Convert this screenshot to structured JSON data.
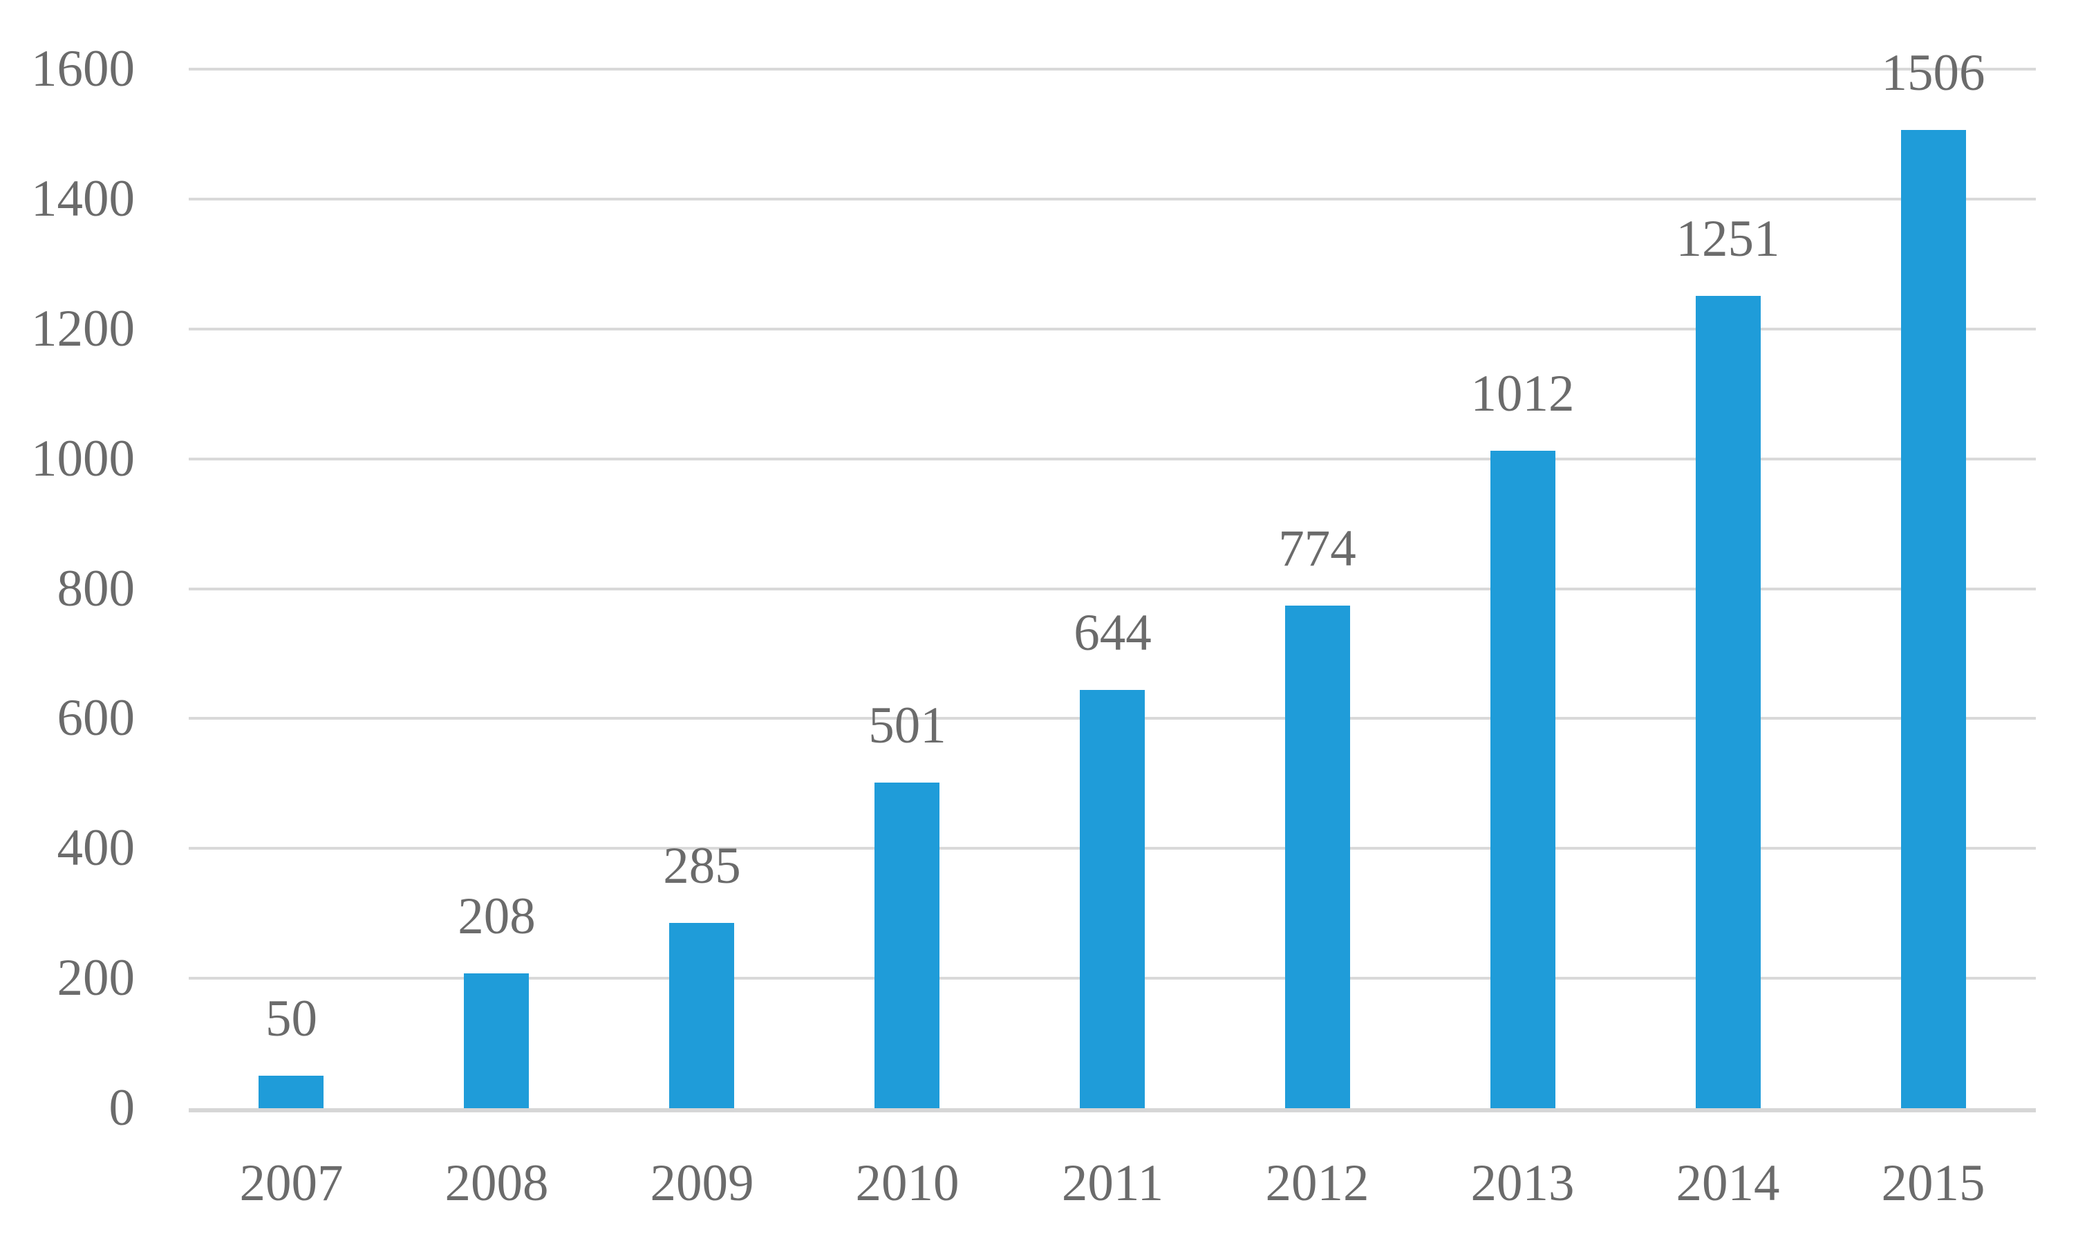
{
  "chart_data": {
    "type": "bar",
    "title": "",
    "xlabel": "",
    "ylabel": "",
    "categories": [
      "2007",
      "2008",
      "2009",
      "2010",
      "2011",
      "2012",
      "2013",
      "2014",
      "2015"
    ],
    "values": [
      50,
      208,
      285,
      501,
      644,
      774,
      1012,
      1251,
      1506
    ],
    "data_labels": [
      "50",
      "208",
      "285",
      "501",
      "644",
      "774",
      "1012",
      "1251",
      "1506"
    ],
    "yticks": [
      "1600",
      "1400",
      "1200",
      "1000",
      "800",
      "600",
      "400",
      "200",
      "0"
    ],
    "ytick_values": [
      1600,
      1400,
      1200,
      1000,
      800,
      600,
      400,
      200,
      0
    ],
    "ylim": [
      0,
      1600
    ],
    "grid": "horizontal",
    "legend": "none",
    "colors": {
      "bar": "#1F9CD9",
      "gridline": "#D9D9D9",
      "axis_line": "#D6D6D6",
      "label_text": "#6B6B6B",
      "background": "#FFFFFF"
    }
  }
}
